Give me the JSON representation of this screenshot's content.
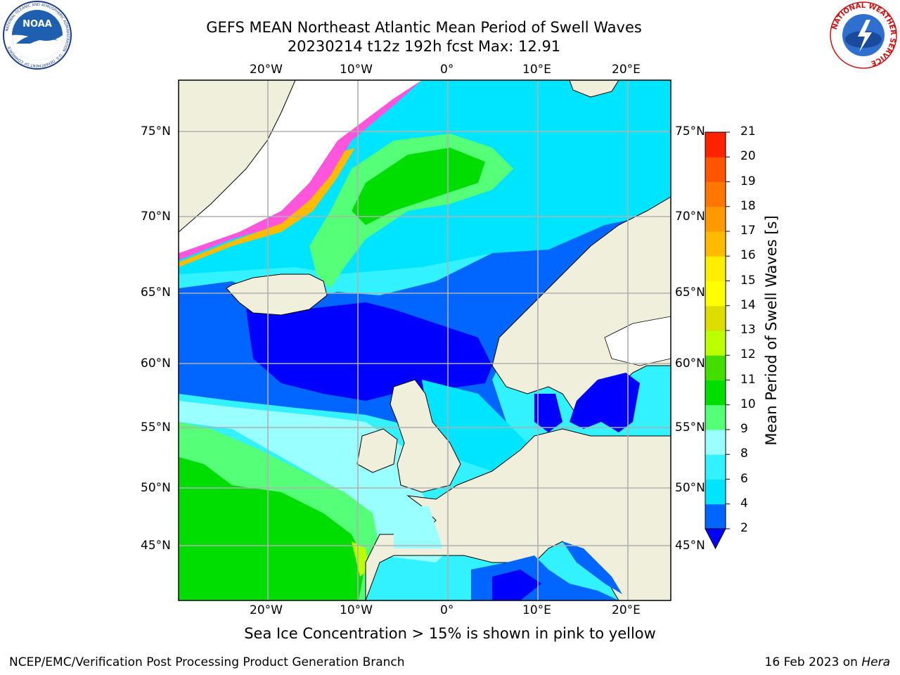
{
  "title_line1": "GEFS MEAN Northeast Atlantic Mean Period of Swell Waves",
  "title_line2": "20230214 t12z 192h fcst   Max: 12.91",
  "lon_ticks": [
    "20°W",
    "10°W",
    "0°",
    "10°E",
    "20°E"
  ],
  "lat_ticks": [
    "75°N",
    "70°N",
    "65°N",
    "60°N",
    "55°N",
    "50°N",
    "45°N"
  ],
  "colorbar": {
    "label": "Mean Period of Swell Waves [s]",
    "ticks": [
      "2",
      "4",
      "6",
      "8",
      "9",
      "10",
      "11",
      "12",
      "13",
      "14",
      "15",
      "16",
      "17",
      "18",
      "19",
      "20",
      "21"
    ],
    "colors": [
      "#0066ff",
      "#00e5ff",
      "#33f2ff",
      "#99ffff",
      "#55ff77",
      "#00dd00",
      "#44dd00",
      "#bbff00",
      "#dddd00",
      "#ffff00",
      "#ffee00",
      "#ffbb00",
      "#ff9900",
      "#ff7700",
      "#ff5500",
      "#ff2200"
    ],
    "under_color": "#0000ff"
  },
  "caption": "Sea Ice Concentration > 15% is shown in pink to yellow",
  "footer_left": "NCEP/EMC/Verification Post Processing Product Generation Branch",
  "footer_right_date": "16 Feb 2023 on ",
  "footer_right_host": "Hera",
  "logos": {
    "left": {
      "name": "NOAA",
      "ring_text": "NATIONAL OCEANIC AND ATMOSPHERIC ADMINISTRATION · U.S. DEPARTMENT OF COMMERCE"
    },
    "right": {
      "ring_text": "NATIONAL WEATHER SERVICE"
    }
  }
}
